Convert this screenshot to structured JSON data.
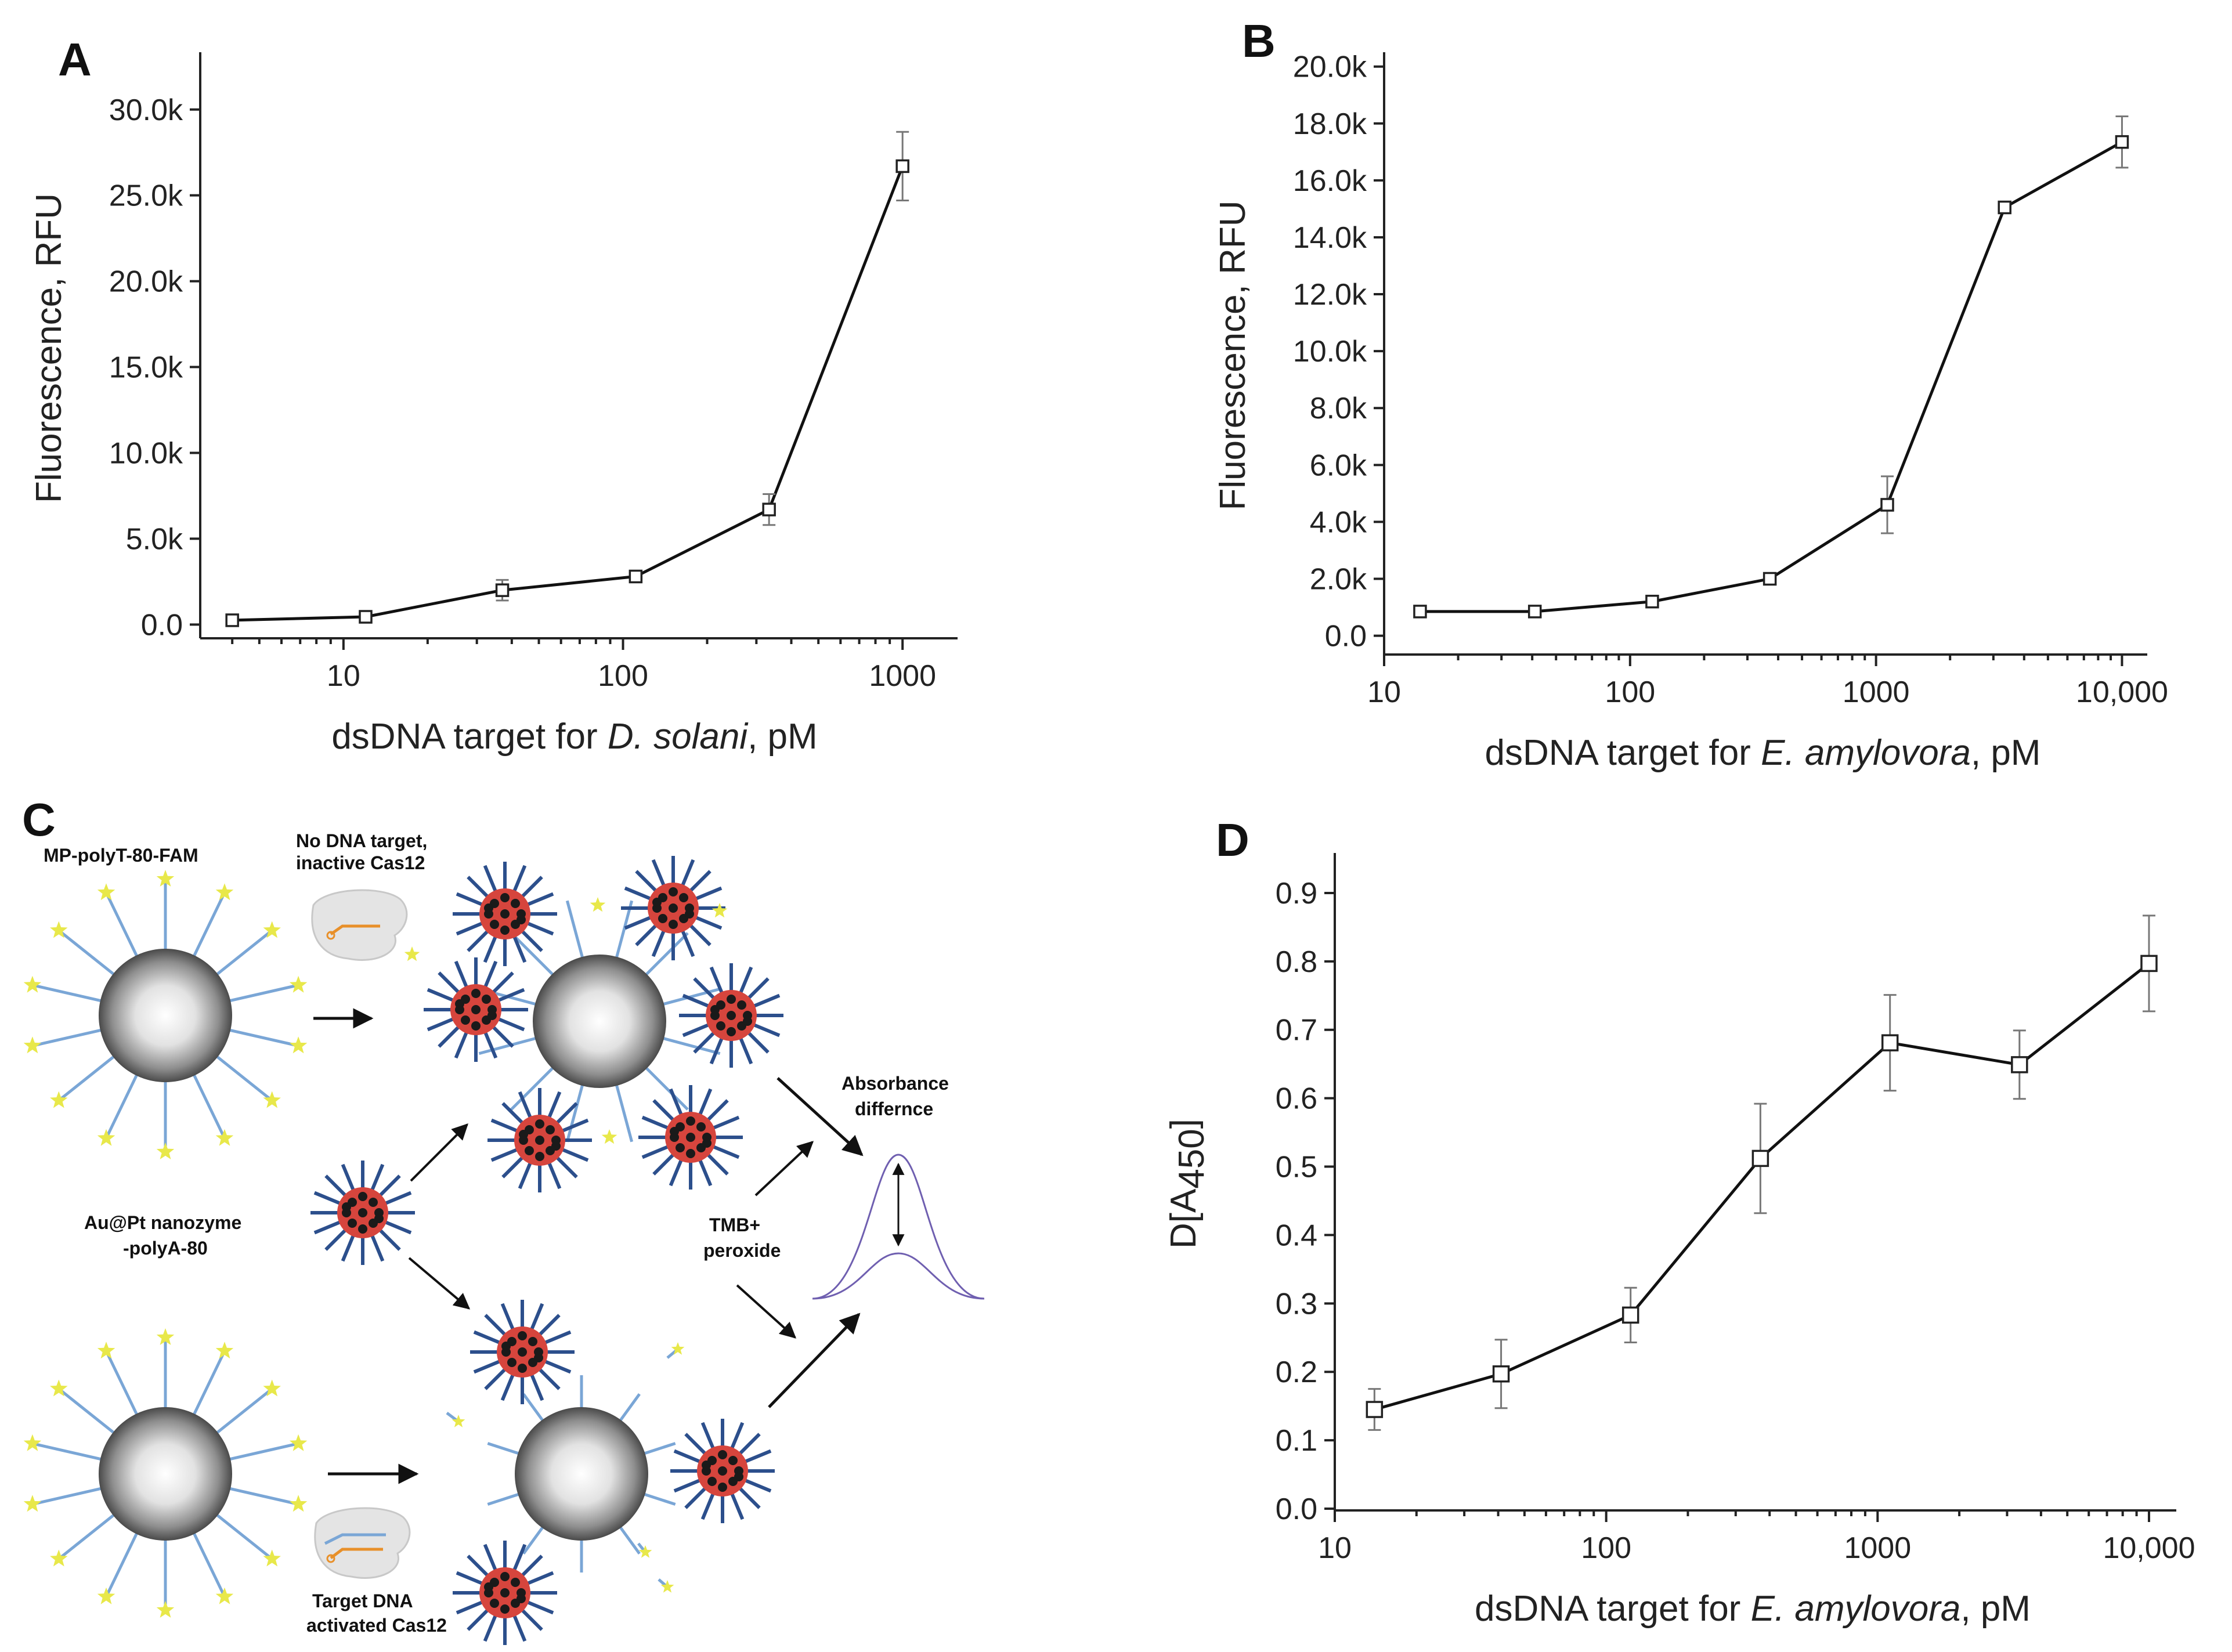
{
  "colors": {
    "axis": "#222222",
    "line": "#111111",
    "errorbar": "#777777",
    "linker_light_blue": "#7aa6d6",
    "linker_dark_blue": "#2c4f8c",
    "fam_star": "#e8e84a",
    "nanozyme_red": "#d6453d",
    "cas_orange": "#e8902a",
    "curve_purple": "#6f5fb0"
  },
  "panels": {
    "A": {
      "letter": "A"
    },
    "B": {
      "letter": "B"
    },
    "C": {
      "letter": "C"
    },
    "D": {
      "letter": "D"
    }
  },
  "chart_data": [
    {
      "panel": "A",
      "type": "line",
      "xscale": "log",
      "x": [
        4,
        12,
        37,
        111,
        333,
        1000
      ],
      "values": [
        250,
        450,
        2000,
        2800,
        6700,
        26700
      ],
      "errors": [
        0,
        0,
        600,
        300,
        900,
        2000
      ],
      "xlim": [
        3,
        1500
      ],
      "ylim": [
        -800,
        33000
      ],
      "yticks": [
        0,
        5000,
        10000,
        15000,
        20000,
        25000,
        30000
      ],
      "ytick_labels": [
        "0.0",
        "5.0k",
        "10.0k",
        "15.0k",
        "20.0k",
        "25.0k",
        "30.0k"
      ],
      "xticks": [
        10,
        100,
        1000
      ],
      "xtick_labels": [
        "10",
        "100",
        "1000"
      ],
      "xlabel_prefix": "dsDNA target for ",
      "xlabel_italic": "D. solani",
      "xlabel_suffix": ", pM",
      "ylabel": "Fluorescence, RFU"
    },
    {
      "panel": "B",
      "type": "line",
      "xscale": "log",
      "x": [
        14,
        41,
        123,
        370,
        1111,
        3333,
        10000
      ],
      "values": [
        850,
        850,
        1200,
        2000,
        4600,
        15050,
        17350
      ],
      "errors": [
        0,
        0,
        0,
        0,
        1000,
        0,
        900
      ],
      "xlim": [
        10,
        12000
      ],
      "ylim": [
        -600,
        20300
      ],
      "yticks": [
        0,
        2000,
        4000,
        6000,
        8000,
        10000,
        12000,
        14000,
        16000,
        18000,
        20000
      ],
      "ytick_labels": [
        "0.0",
        "2.0k",
        "4.0k",
        "6.0k",
        "8.0k",
        "10.0k",
        "12.0k",
        "14.0k",
        "16.0k",
        "18.0k",
        "20.0k"
      ],
      "xticks": [
        10,
        100,
        1000,
        10000
      ],
      "xtick_labels": [
        "10",
        "100",
        "1000",
        "10,000"
      ],
      "xlabel_prefix": "dsDNA target for ",
      "xlabel_italic": "E. amylovora",
      "xlabel_suffix": ", pM",
      "ylabel": "Fluorescence, RFU"
    },
    {
      "panel": "D",
      "type": "line",
      "xscale": "log",
      "x": [
        14,
        41,
        123,
        370,
        1111,
        3333,
        10000
      ],
      "values": [
        0.145,
        0.197,
        0.283,
        0.512,
        0.681,
        0.649,
        0.797
      ],
      "errors": [
        0.03,
        0.05,
        0.04,
        0.08,
        0.07,
        0.05,
        0.07
      ],
      "xlim": [
        10,
        12000
      ],
      "ylim": [
        0,
        0.95
      ],
      "yticks": [
        0,
        0.1,
        0.2,
        0.3,
        0.4,
        0.5,
        0.6,
        0.7,
        0.8,
        0.9
      ],
      "ytick_labels": [
        "0.0",
        "0.1",
        "0.2",
        "0.3",
        "0.4",
        "0.5",
        "0.6",
        "0.7",
        "0.8",
        "0.9"
      ],
      "xticks": [
        10,
        100,
        1000,
        10000
      ],
      "xtick_labels": [
        "10",
        "100",
        "1000",
        "10,000"
      ],
      "xlabel_prefix": "dsDNA target for ",
      "xlabel_italic": "E. amylovora",
      "xlabel_suffix": ", pM",
      "ylabel_main": "D[A",
      "ylabel_sub": "450",
      "ylabel_end": "]"
    }
  ],
  "schematic": {
    "mp_label": "MP-polyT-80-FAM",
    "no_target_line1": "No DNA target,",
    "no_target_line2": "inactive Cas12",
    "nanozyme_line1": "Au@Pt nanozyme",
    "nanozyme_line2": "-polyA-80",
    "absorbance_line1": "Absorbance",
    "absorbance_line2": "differnce",
    "tmb_line1": "TMB+",
    "tmb_line2": "peroxide",
    "target_line1": "Target DNA",
    "target_line2": "activated Cas12"
  }
}
